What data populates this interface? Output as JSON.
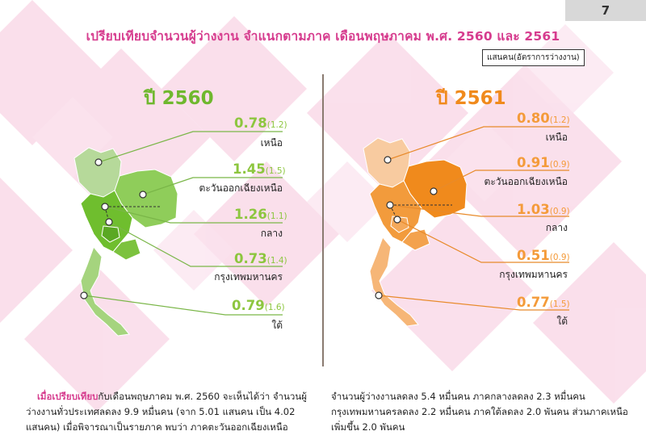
{
  "page_number": "7",
  "title": "เปรียบเทียบจำนวนผู้ว่างงาน จำแนกตามภาค เดือนพฤษภาคม พ.ศ. 2560 และ 2561",
  "unit_label": "แสนคน(อัตราการว่างงาน)",
  "colors": {
    "title": "#d63c8e",
    "y2560": "#6fb82e",
    "y2561": "#f08a1c"
  },
  "year_2560": {
    "label": "ปี 2560",
    "regions": [
      {
        "value": "0.78",
        "rate": "(1.2)",
        "name": "เหนือ"
      },
      {
        "value": "1.45",
        "rate": "(1.5)",
        "name": "ตะวันออกเฉียงเหนือ"
      },
      {
        "value": "1.26",
        "rate": "(1.1)",
        "name": "กลาง"
      },
      {
        "value": "0.73",
        "rate": "(1.4)",
        "name": "กรุงเทพมหานคร"
      },
      {
        "value": "0.79",
        "rate": "(1.6)",
        "name": "ใต้"
      }
    ]
  },
  "year_2561": {
    "label": "ปี 2561",
    "regions": [
      {
        "value": "0.80",
        "rate": "(1.2)",
        "name": "เหนือ"
      },
      {
        "value": "0.91",
        "rate": "(0.9)",
        "name": "ตะวันออกเฉียงเหนือ"
      },
      {
        "value": "1.03",
        "rate": "(0.9)",
        "name": "กลาง"
      },
      {
        "value": "0.51",
        "rate": "(0.9)",
        "name": "กรุงเทพมหานคร"
      },
      {
        "value": "0.77",
        "rate": "(1.5)",
        "name": "ใต้"
      }
    ]
  },
  "text_left": {
    "highlight": "เมื่อเปรียบเทียบ",
    "rest": "กับเดือนพฤษภาคม พ.ศ. 2560 จะเห็นได้ว่า จำนวนผู้ว่างงานทั่วประเทศลดลง 9.9 หมื่นคน (จาก 5.01 แสนคน เป็น 4.02 แสนคน) เมื่อพิจารณาเป็นรายภาค พบว่า ภาคตะวันออกเฉียงเหนือ"
  },
  "text_right": "จำนวนผู้ว่างงานลดลง 5.4 หมื่นคน ภาคกลางลดลง 2.3 หมื่นคน กรุงเทพมหานครลดลง 2.2 หมื่นคน ภาคใต้ลดลง 2.0 พันคน ส่วนภาคเหนือเพิ่มขึ้น 2.0 พันคน"
}
